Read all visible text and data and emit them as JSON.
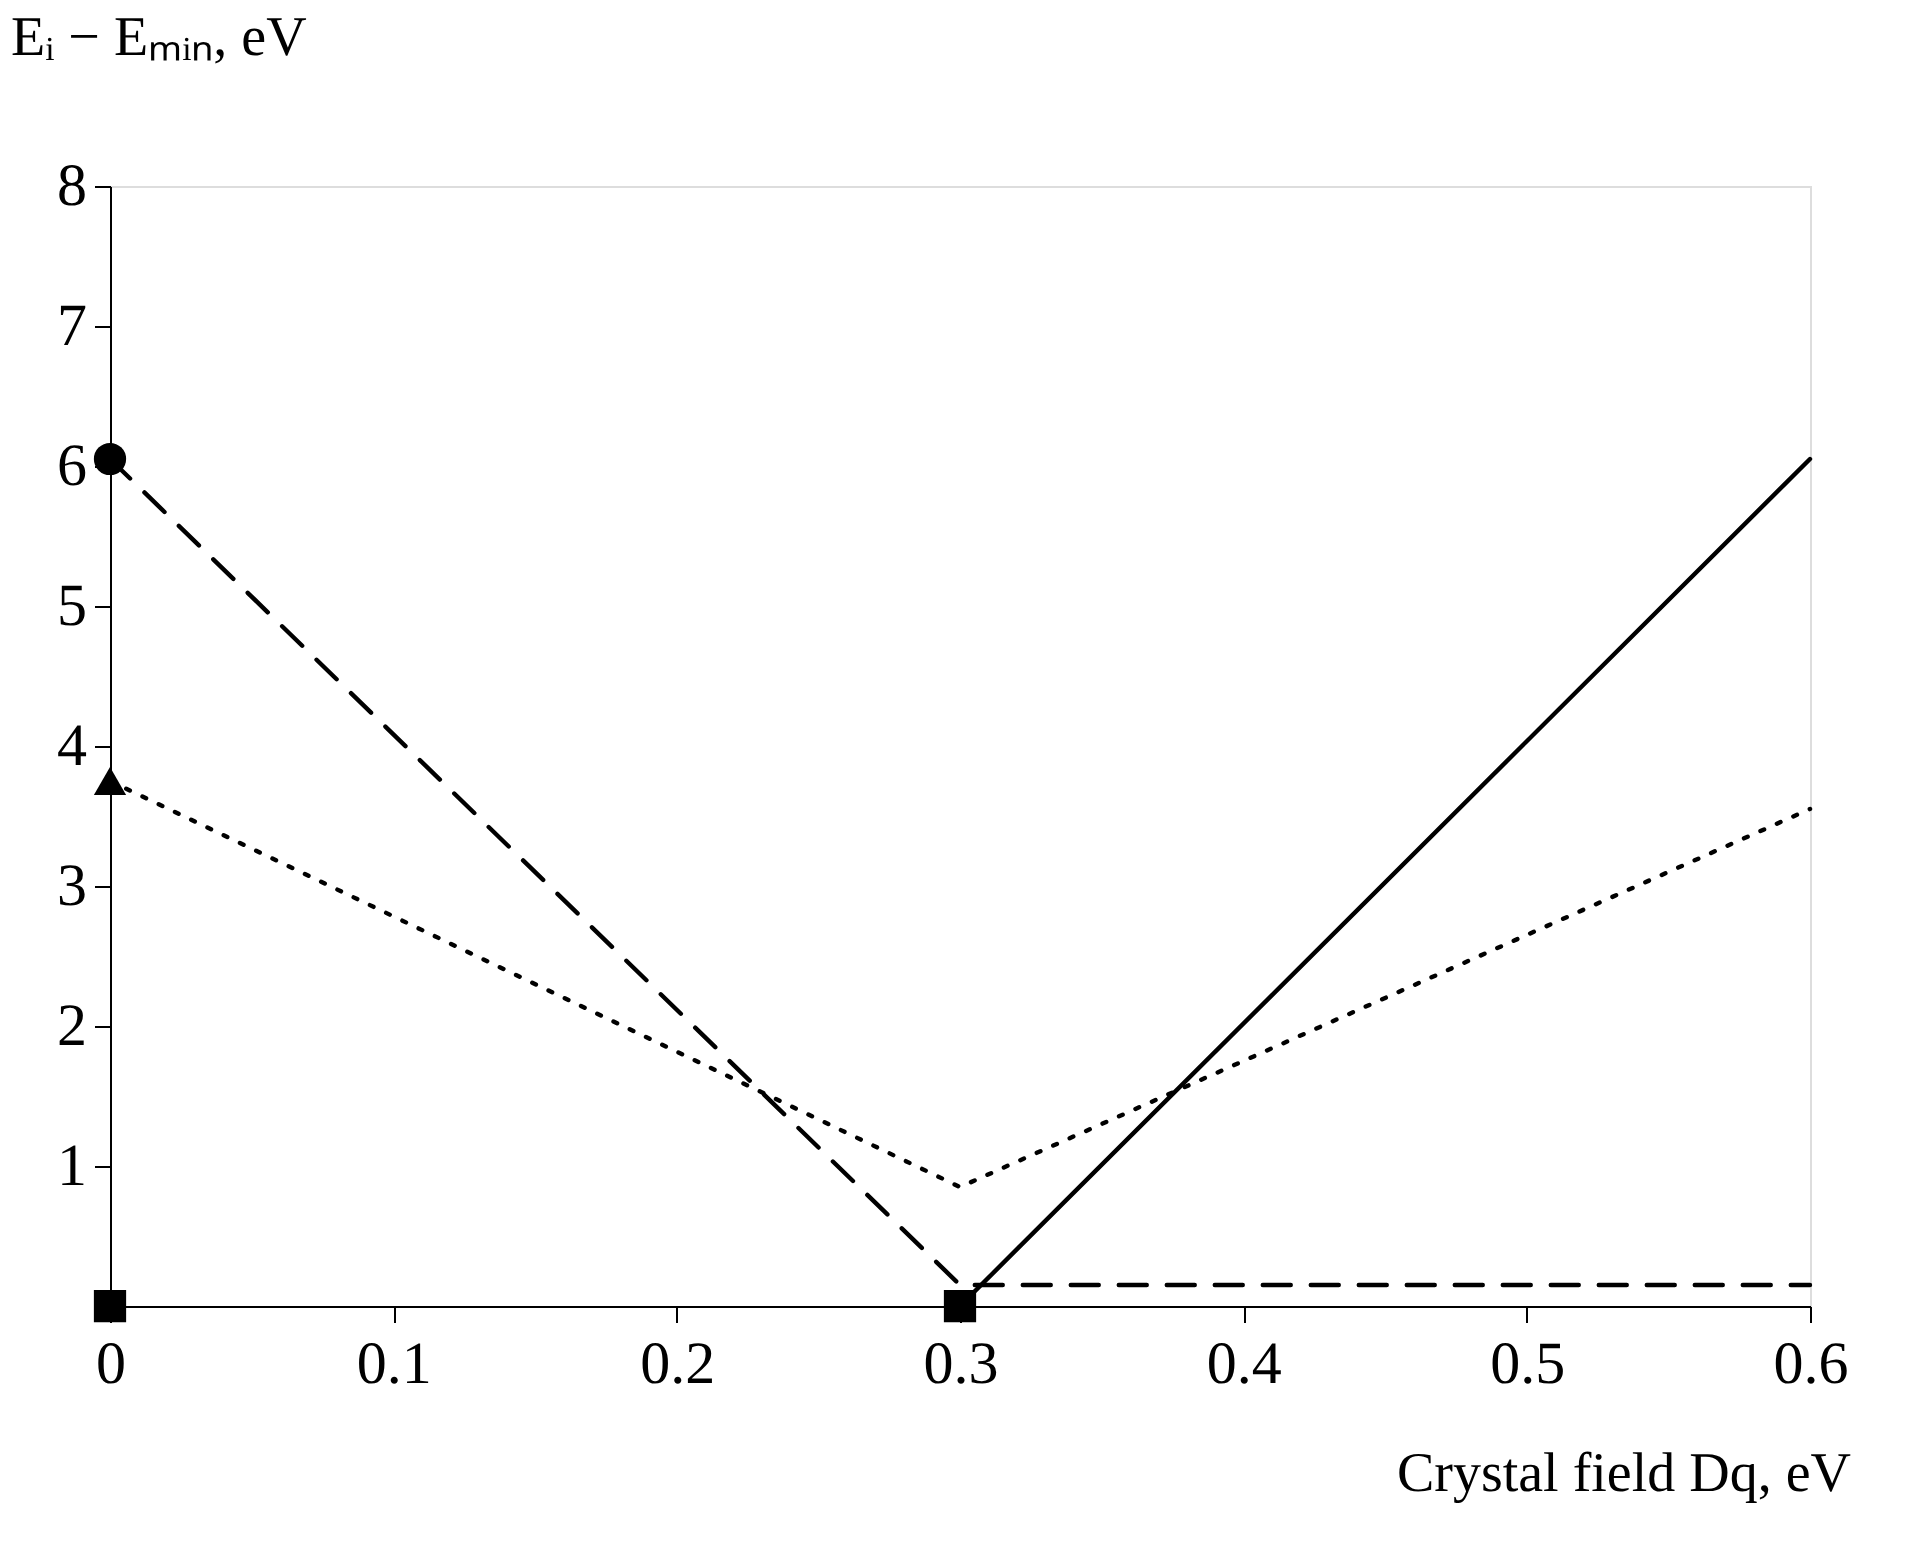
{
  "chart_data": {
    "type": "line",
    "xlabel": "Crystal field Dq, eV",
    "ylabel": "Eᵢ − Eₘᵢₙ, eV",
    "xlim": [
      0,
      0.6
    ],
    "xticks": [
      0,
      0.1,
      0.2,
      0.3,
      0.4,
      0.5,
      0.6
    ],
    "ylim": [
      0,
      8
    ],
    "yticks": [
      {
        "value": 0,
        "label": null
      },
      1,
      2,
      3,
      4,
      5,
      6,
      7,
      8
    ],
    "grid": false,
    "series": [
      {
        "line_style": "dashed",
        "color": "#000000",
        "x": [
          0,
          0.3,
          0.6
        ],
        "values": [
          6.05,
          0.15,
          0.15
        ]
      },
      {
        "line_style": "dotted",
        "color": "#000000",
        "x": [
          0,
          0.3,
          0.6
        ],
        "values": [
          3.75,
          0.85,
          3.55
        ]
      },
      {
        "line_style": "solid",
        "color": "#000000",
        "x": [
          0.3,
          0.6
        ],
        "values": [
          0,
          6.05
        ]
      },
      {
        "type": "scatter",
        "marker": "circle",
        "color": "#000000",
        "x": [
          0
        ],
        "values": [
          6.05
        ]
      },
      {
        "type": "scatter",
        "marker": "triangle",
        "color": "#000000",
        "x": [
          0
        ],
        "values": [
          3.75
        ]
      },
      {
        "type": "scatter",
        "marker": "square",
        "color": "#000000",
        "x": [
          0,
          0.3
        ],
        "values": [
          0,
          0
        ]
      }
    ]
  }
}
